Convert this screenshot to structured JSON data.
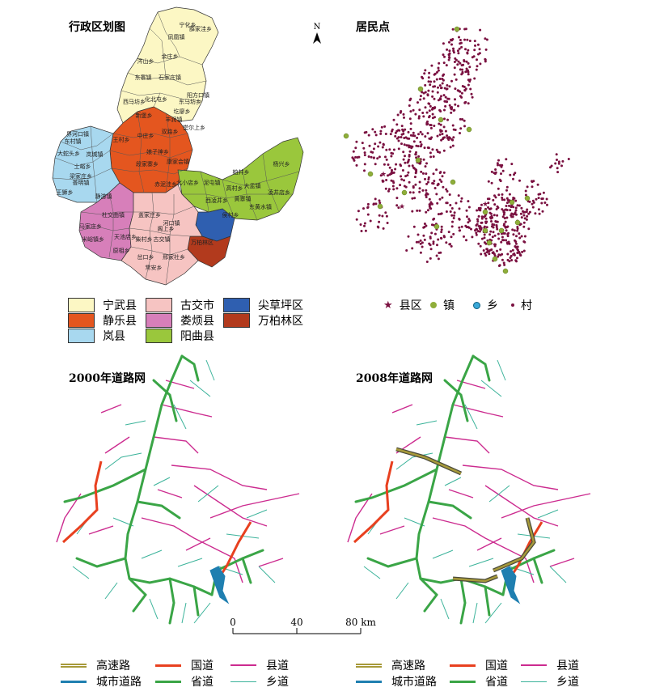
{
  "panels": {
    "admin": {
      "title": "行政区划图"
    },
    "settlement": {
      "title": "居民点"
    },
    "roads2000": {
      "title": "2000年道路网"
    },
    "roads2008": {
      "title": "2008年道路网"
    }
  },
  "north_arrow": "N",
  "admin_legend": [
    {
      "name": "宁武县",
      "color": "#fcf7c4"
    },
    {
      "name": "古交市",
      "color": "#f6c4c2"
    },
    {
      "name": "尖草坪区",
      "color": "#2f5fb0"
    },
    {
      "name": "静乐县",
      "color": "#e4561f"
    },
    {
      "name": "娄烦县",
      "color": "#d77fba"
    },
    {
      "name": "万柏林区",
      "color": "#b23a1d"
    },
    {
      "name": "岚县",
      "color": "#a8d8ef"
    },
    {
      "name": "阳曲县",
      "color": "#9ac73c"
    }
  ],
  "settlement_legend": [
    {
      "symbol": "★",
      "name": "县区",
      "color": "#7a1040"
    },
    {
      "symbol": "●",
      "name": "镇",
      "color": "#8fae3a"
    },
    {
      "symbol": "●",
      "name": "乡",
      "color": "#3aa8d8"
    },
    {
      "symbol": "•",
      "name": "村",
      "color": "#7a1040"
    }
  ],
  "road_legend": [
    {
      "name": "高速路",
      "color": "#a79a3a"
    },
    {
      "name": "国道",
      "color": "#e8401f"
    },
    {
      "name": "县道",
      "color": "#cc2b8f"
    },
    {
      "name": "城市道路",
      "color": "#1f7fb0"
    },
    {
      "name": "省道",
      "color": "#3aa546"
    },
    {
      "name": "乡道",
      "color": "#3bb39a"
    }
  ],
  "scale_bar": {
    "ticks": [
      "0",
      "40",
      "80 km"
    ]
  },
  "place_labels": [
    "宁化乡",
    "薛家洼乡",
    "凤凰镇",
    "涔山乡",
    "余庄乡",
    "东寨镇",
    "石家庄镇",
    "阳方口镇",
    "西马坊乡",
    "化北屯乡",
    "东马坊乡",
    "圪廖乡",
    "新堡乡",
    "丰润镇",
    "双路乡",
    "娘子神乡",
    "赤泥洼乡",
    "堂尔上乡",
    "康家会镇",
    "段家寨乡",
    "中庄乡",
    "王村乡",
    "岚城镇",
    "东村镇",
    "梁家庄乡",
    "大蛇头乡",
    "土峪乡",
    "王狮乡",
    "普明镇",
    "界河口镇",
    "杨兴乡",
    "大盂镇",
    "高村乡",
    "泥屯镇",
    "黄寨镇",
    "侯村乡",
    "东黄水镇",
    "凌井店乡",
    "西凌井乡",
    "北小店乡",
    "柏井乡",
    "静游镇",
    "马家庄乡",
    "杜交曲镇",
    "米峪镇乡",
    "天池店乡",
    "盖家庄乡",
    "阁上乡",
    "河口镇",
    "岔口乡",
    "常安乡",
    "邢家社乡",
    "原相乡",
    "古交镇",
    "柴村乡",
    "万柏林区"
  ]
}
